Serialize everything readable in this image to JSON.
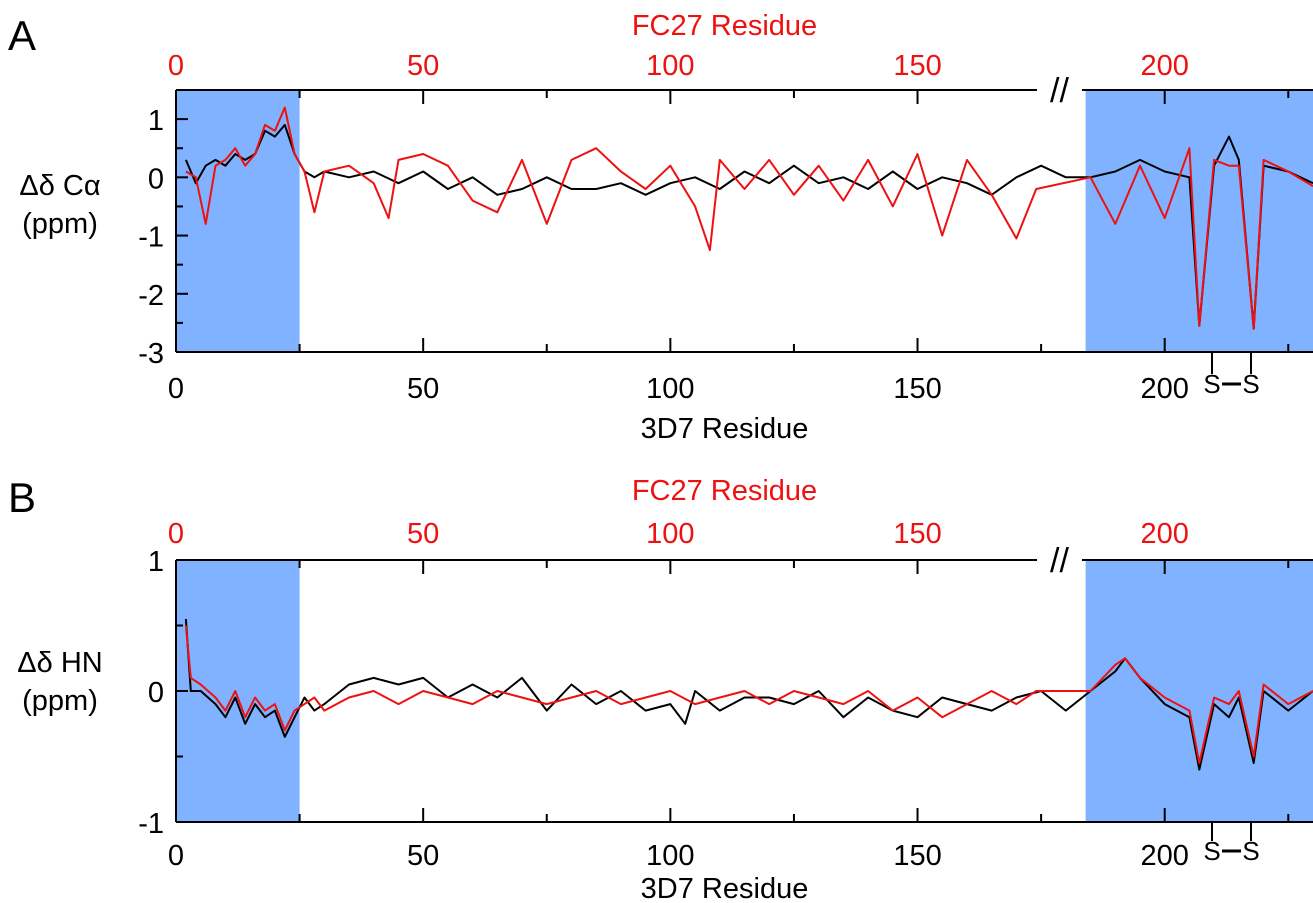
{
  "colors": {
    "shade": "#80b2ff",
    "series_3d7": "#000000",
    "series_fc27": "#ee1111",
    "axis": "#000000"
  },
  "chart_data": [
    {
      "panel": "A",
      "type": "line",
      "title": "",
      "xlabel": "3D7 Residue",
      "x2label": "FC27 Residue",
      "ylabel": [
        "Δδ Cα",
        "(ppm)"
      ],
      "ylim": [
        -3,
        1.5
      ],
      "xlim": [
        0,
        230
      ],
      "xticks": [
        0,
        50,
        100,
        150,
        200
      ],
      "x2ticks": [
        0,
        50,
        100,
        150,
        200
      ],
      "yticks": [
        1,
        0,
        -1,
        -2,
        -3
      ],
      "shaded_ranges": [
        [
          0,
          25
        ],
        [
          184,
          230
        ]
      ],
      "axis_break_label": "//",
      "disulfide_label": [
        "S",
        "S"
      ],
      "series": [
        {
          "name": "3D7",
          "x": [
            2,
            4,
            6,
            8,
            10,
            12,
            14,
            16,
            18,
            20,
            22,
            24,
            26,
            28,
            30,
            35,
            40,
            45,
            50,
            55,
            60,
            65,
            70,
            75,
            80,
            85,
            90,
            95,
            100,
            105,
            110,
            115,
            120,
            125,
            130,
            135,
            140,
            145,
            150,
            155,
            160,
            165,
            170,
            175,
            180,
            185,
            190,
            195,
            200,
            205,
            207,
            210,
            213,
            215,
            218,
            220,
            225,
            230
          ],
          "values": [
            0.3,
            -0.1,
            0.2,
            0.3,
            0.2,
            0.4,
            0.3,
            0.4,
            0.8,
            0.7,
            0.9,
            0.4,
            0.1,
            0.0,
            0.1,
            0.0,
            0.1,
            -0.1,
            0.1,
            -0.2,
            0.0,
            -0.3,
            -0.2,
            0.0,
            -0.2,
            -0.2,
            -0.1,
            -0.3,
            -0.1,
            0.0,
            -0.2,
            0.1,
            -0.1,
            0.2,
            -0.1,
            0.0,
            -0.2,
            0.1,
            -0.2,
            0.0,
            -0.1,
            -0.3,
            0.0,
            0.2,
            0.0,
            0.0,
            0.1,
            0.3,
            0.1,
            0.0,
            -2.55,
            0.2,
            0.7,
            0.3,
            -2.6,
            0.2,
            0.1,
            -0.1
          ]
        },
        {
          "name": "FC27",
          "x": [
            2,
            4,
            6,
            8,
            10,
            12,
            14,
            16,
            18,
            20,
            22,
            24,
            26,
            28,
            30,
            35,
            40,
            43,
            45,
            50,
            55,
            60,
            65,
            70,
            75,
            80,
            85,
            90,
            95,
            100,
            105,
            108,
            110,
            115,
            120,
            125,
            130,
            135,
            140,
            145,
            150,
            155,
            160,
            165,
            170,
            174,
            185,
            190,
            195,
            200,
            205,
            207,
            210,
            213,
            215,
            218,
            220,
            225,
            230
          ],
          "values": [
            0.1,
            0.0,
            -0.8,
            0.2,
            0.3,
            0.5,
            0.2,
            0.4,
            0.9,
            0.8,
            1.2,
            0.4,
            0.1,
            -0.6,
            0.1,
            0.2,
            -0.1,
            -0.7,
            0.3,
            0.4,
            0.2,
            -0.4,
            -0.6,
            0.3,
            -0.8,
            0.3,
            0.5,
            0.1,
            -0.2,
            0.2,
            -0.5,
            -1.25,
            0.3,
            -0.2,
            0.3,
            -0.3,
            0.2,
            -0.4,
            0.3,
            -0.5,
            0.4,
            -1.0,
            0.3,
            -0.3,
            -1.05,
            -0.2,
            0.0,
            -0.8,
            0.2,
            -0.7,
            0.5,
            -2.55,
            0.3,
            0.2,
            0.2,
            -2.6,
            0.3,
            0.1,
            -0.15
          ]
        }
      ]
    },
    {
      "panel": "B",
      "type": "line",
      "title": "",
      "xlabel": "3D7 Residue",
      "x2label": "FC27 Residue",
      "ylabel": [
        "Δδ HN",
        "(ppm)"
      ],
      "ylim": [
        -1,
        1
      ],
      "xlim": [
        0,
        230
      ],
      "xticks": [
        0,
        50,
        100,
        150,
        200
      ],
      "x2ticks": [
        0,
        50,
        100,
        150,
        200
      ],
      "yticks": [
        1,
        0,
        -1
      ],
      "shaded_ranges": [
        [
          0,
          25
        ],
        [
          184,
          230
        ]
      ],
      "axis_break_label": "//",
      "disulfide_label": [
        "S",
        "S"
      ],
      "series": [
        {
          "name": "3D7",
          "x": [
            2,
            3,
            5,
            8,
            10,
            12,
            14,
            16,
            18,
            20,
            22,
            24,
            26,
            28,
            30,
            35,
            40,
            45,
            50,
            55,
            60,
            65,
            70,
            75,
            80,
            85,
            90,
            95,
            100,
            103,
            105,
            110,
            115,
            120,
            125,
            130,
            135,
            140,
            145,
            150,
            155,
            160,
            165,
            170,
            175,
            180,
            185,
            190,
            192,
            195,
            200,
            205,
            207,
            210,
            213,
            215,
            218,
            220,
            225,
            230
          ],
          "values": [
            0.55,
            0.0,
            0.0,
            -0.1,
            -0.2,
            -0.05,
            -0.25,
            -0.1,
            -0.2,
            -0.15,
            -0.35,
            -0.2,
            -0.05,
            -0.15,
            -0.1,
            0.05,
            0.1,
            0.05,
            0.1,
            -0.05,
            0.05,
            -0.05,
            0.1,
            -0.15,
            0.05,
            -0.1,
            0.0,
            -0.15,
            -0.1,
            -0.25,
            0.0,
            -0.15,
            -0.05,
            -0.05,
            -0.1,
            0.0,
            -0.2,
            -0.05,
            -0.15,
            -0.2,
            -0.05,
            -0.1,
            -0.15,
            -0.05,
            0.0,
            -0.15,
            0.0,
            0.15,
            0.25,
            0.1,
            -0.1,
            -0.2,
            -0.6,
            -0.1,
            -0.2,
            -0.05,
            -0.55,
            0.0,
            -0.15,
            0.0
          ]
        },
        {
          "name": "FC27",
          "x": [
            2,
            3,
            5,
            8,
            10,
            12,
            14,
            16,
            18,
            20,
            22,
            24,
            26,
            28,
            30,
            35,
            40,
            45,
            50,
            55,
            60,
            65,
            70,
            75,
            80,
            85,
            90,
            95,
            100,
            105,
            110,
            115,
            120,
            125,
            130,
            135,
            140,
            145,
            150,
            155,
            160,
            165,
            170,
            174,
            185,
            190,
            192,
            195,
            200,
            205,
            207,
            210,
            213,
            215,
            218,
            220,
            225,
            230
          ],
          "values": [
            0.5,
            0.1,
            0.05,
            -0.05,
            -0.15,
            0.0,
            -0.2,
            -0.05,
            -0.15,
            -0.1,
            -0.3,
            -0.15,
            -0.1,
            -0.05,
            -0.15,
            -0.05,
            0.0,
            -0.1,
            0.0,
            -0.05,
            -0.1,
            0.0,
            -0.05,
            -0.1,
            -0.05,
            0.0,
            -0.1,
            -0.05,
            0.0,
            -0.1,
            -0.05,
            0.0,
            -0.1,
            0.0,
            -0.05,
            -0.1,
            0.0,
            -0.15,
            -0.05,
            -0.2,
            -0.1,
            0.0,
            -0.1,
            0.0,
            0.0,
            0.2,
            0.25,
            0.1,
            -0.05,
            -0.15,
            -0.55,
            -0.05,
            -0.1,
            0.0,
            -0.5,
            0.05,
            -0.1,
            0.0
          ]
        }
      ]
    }
  ]
}
